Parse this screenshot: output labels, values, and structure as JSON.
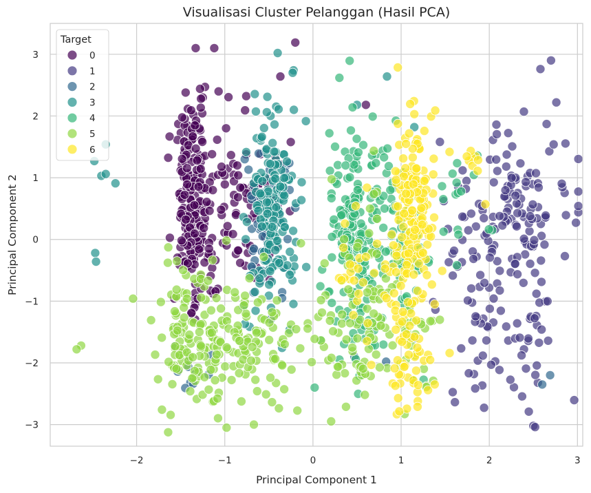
{
  "chart_data": {
    "type": "scatter",
    "title": "Visualisasi Cluster Pelanggan (Hasil PCA)",
    "xlabel": "Principal Component 1",
    "ylabel": "Principal Component 2",
    "xlim": [
      -2.98,
      3.06
    ],
    "ylim": [
      -3.35,
      3.5
    ],
    "xticks": [
      -2,
      -1,
      0,
      1,
      2,
      3
    ],
    "yticks": [
      -3,
      -2,
      -1,
      0,
      1,
      2,
      3
    ],
    "grid": true,
    "legend": {
      "title": "Target",
      "placement": "top-left"
    },
    "series": [
      {
        "name": "0",
        "color": "#440154",
        "clusters": [
          {
            "cx": -1.38,
            "cy": 0.65,
            "sx": 0.1,
            "sy": 0.75,
            "n": 200
          },
          {
            "cx": -0.8,
            "cy": 0.6,
            "sx": 0.25,
            "sy": 0.65,
            "n": 100
          },
          {
            "cx": -1.25,
            "cy": -0.6,
            "sx": 0.12,
            "sy": 0.3,
            "n": 15
          }
        ],
        "points": [
          [
            -1.33,
            3.1
          ],
          [
            -1.12,
            3.1
          ],
          [
            -1.28,
            2.44
          ],
          [
            -1.25,
            2.3
          ],
          [
            -1.27,
            2.28
          ],
          [
            -0.37,
            2.64
          ],
          [
            -0.2,
            3.19
          ],
          [
            0.6,
            2.18
          ]
        ]
      },
      {
        "name": "1",
        "color": "#443a83",
        "clusters": [
          {
            "cx": 2.3,
            "cy": 0.4,
            "sx": 0.33,
            "sy": 0.7,
            "n": 120
          },
          {
            "cx": 2.25,
            "cy": -1.7,
            "sx": 0.3,
            "sy": 0.45,
            "n": 55
          },
          {
            "cx": 1.75,
            "cy": -0.3,
            "sx": 0.2,
            "sy": 0.6,
            "n": 25
          }
        ],
        "points": [
          [
            2.58,
            2.76
          ],
          [
            2.7,
            2.9
          ],
          [
            2.76,
            2.22
          ],
          [
            2.65,
            1.87
          ],
          [
            2.5,
            -3.02
          ],
          [
            2.52,
            -3.04
          ],
          [
            2.73,
            1.54
          ]
        ]
      },
      {
        "name": "2",
        "color": "#31688e",
        "clusters": [
          {
            "cx": -0.55,
            "cy": 0.4,
            "sx": 0.15,
            "sy": 0.7,
            "n": 60
          },
          {
            "cx": -1.4,
            "cy": -2.1,
            "sx": 0.15,
            "sy": 0.2,
            "n": 10
          }
        ],
        "points": [
          [
            2.6,
            -2.35
          ],
          [
            2.69,
            -2.2
          ],
          [
            0.47,
            -1.9
          ],
          [
            0.83,
            -1.98
          ],
          [
            1.15,
            -1.6
          ]
        ]
      },
      {
        "name": "3",
        "color": "#21918c",
        "clusters": [
          {
            "cx": -0.45,
            "cy": 0.4,
            "sx": 0.15,
            "sy": 0.75,
            "n": 170
          }
        ],
        "points": [
          [
            -2.35,
            1.54
          ],
          [
            -2.48,
            1.27
          ],
          [
            -2.4,
            1.03
          ],
          [
            -2.35,
            1.06
          ],
          [
            -2.24,
            0.91
          ],
          [
            -2.47,
            -0.22
          ],
          [
            -2.46,
            -0.36
          ],
          [
            -0.4,
            3.02
          ],
          [
            -0.22,
            2.74
          ],
          [
            -0.23,
            2.7
          ],
          [
            -0.39,
            2.11
          ],
          [
            0.5,
            2.18
          ],
          [
            0.84,
            2.64
          ],
          [
            1.15,
            1.82
          ]
        ]
      },
      {
        "name": "4",
        "color": "#35b779",
        "clusters": [
          {
            "cx": 0.45,
            "cy": 0.25,
            "sx": 0.15,
            "sy": 0.85,
            "n": 150
          },
          {
            "cx": 1.0,
            "cy": 0.2,
            "sx": 0.15,
            "sy": 0.85,
            "n": 70
          },
          {
            "cx": 0.5,
            "cy": -1.6,
            "sx": 0.2,
            "sy": 0.5,
            "n": 30
          },
          {
            "cx": 1.7,
            "cy": 0.6,
            "sx": 0.15,
            "sy": 0.5,
            "n": 15
          }
        ],
        "points": [
          [
            0.45,
            2.14
          ]
        ]
      },
      {
        "name": "5",
        "color": "#90d743",
        "clusters": [
          {
            "cx": -1.35,
            "cy": -1.6,
            "sx": 0.22,
            "sy": 0.6,
            "n": 120
          },
          {
            "cx": -0.7,
            "cy": -1.7,
            "sx": 0.3,
            "sy": 0.5,
            "n": 100
          },
          {
            "cx": 0.5,
            "cy": -1.7,
            "sx": 0.3,
            "sy": 0.55,
            "n": 60
          },
          {
            "cx": 0.6,
            "cy": -0.3,
            "sx": 0.3,
            "sy": 0.7,
            "n": 40
          },
          {
            "cx": 1.1,
            "cy": -1.7,
            "sx": 0.2,
            "sy": 0.5,
            "n": 25
          }
        ],
        "points": [
          [
            -2.63,
            -1.72
          ],
          [
            -2.68,
            -1.78
          ],
          [
            -0.98,
            -3.05
          ],
          [
            -0.67,
            -3.0
          ],
          [
            1.04,
            -2.83
          ]
        ]
      },
      {
        "name": "6",
        "color": "#fde725",
        "clusters": [
          {
            "cx": 1.15,
            "cy": 0.5,
            "sx": 0.12,
            "sy": 0.7,
            "n": 160
          },
          {
            "cx": 1.1,
            "cy": -1.5,
            "sx": 0.15,
            "sy": 0.6,
            "n": 70
          },
          {
            "cx": 0.55,
            "cy": -0.8,
            "sx": 0.2,
            "sy": 0.7,
            "n": 30
          },
          {
            "cx": 1.85,
            "cy": 1.1,
            "sx": 0.15,
            "sy": 0.4,
            "n": 10
          }
        ],
        "points": [
          [
            1.55,
            -1.84
          ]
        ]
      }
    ]
  }
}
